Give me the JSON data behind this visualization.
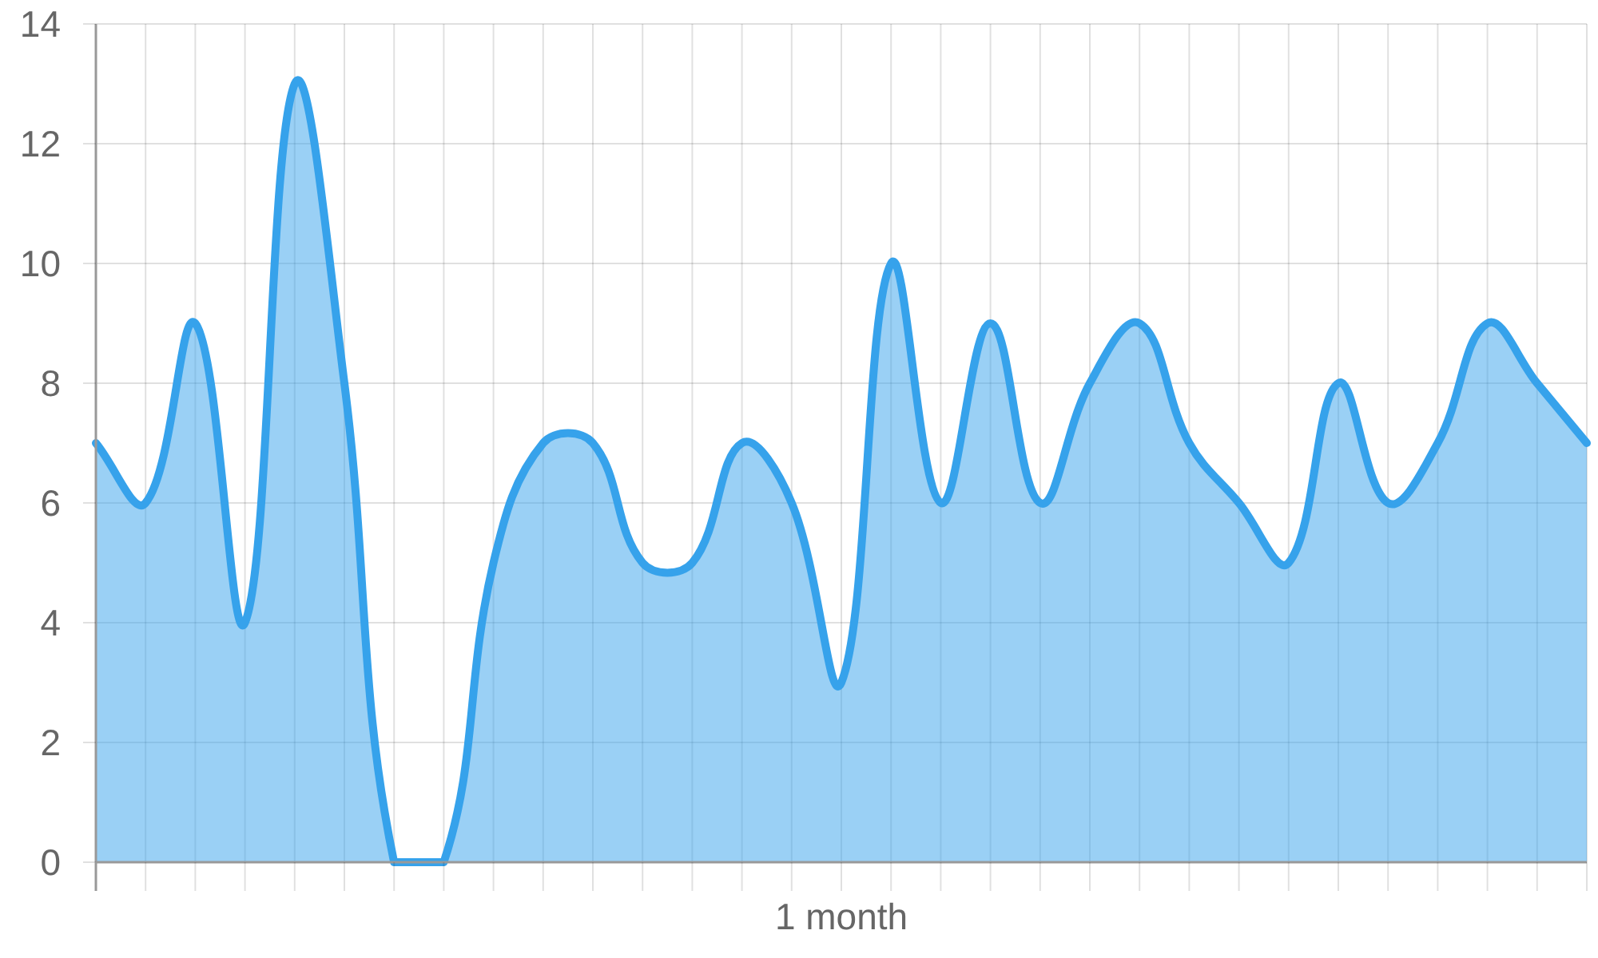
{
  "chart_data": {
    "type": "area",
    "xlabel": "1 month",
    "categories": [
      null,
      null,
      null,
      null,
      null,
      null,
      null,
      null,
      null,
      null,
      null,
      null,
      null,
      null,
      null,
      null,
      null,
      null,
      null,
      null,
      null,
      null,
      null,
      null,
      null,
      null,
      null,
      null,
      null,
      null,
      null
    ],
    "series": [
      {
        "color": "#36a2eb",
        "values": [
          7,
          6,
          9,
          4,
          13,
          8,
          0,
          0,
          5,
          7,
          7,
          5,
          5,
          7,
          6,
          3,
          10,
          6,
          9,
          6,
          8,
          9,
          7,
          6,
          5,
          8,
          6,
          7,
          9,
          8,
          7
        ]
      }
    ],
    "ylim": [
      0,
      14
    ],
    "yticks": [
      0,
      2,
      4,
      6,
      8,
      10,
      12,
      14
    ],
    "grid": true,
    "tick_labels": "y"
  }
}
